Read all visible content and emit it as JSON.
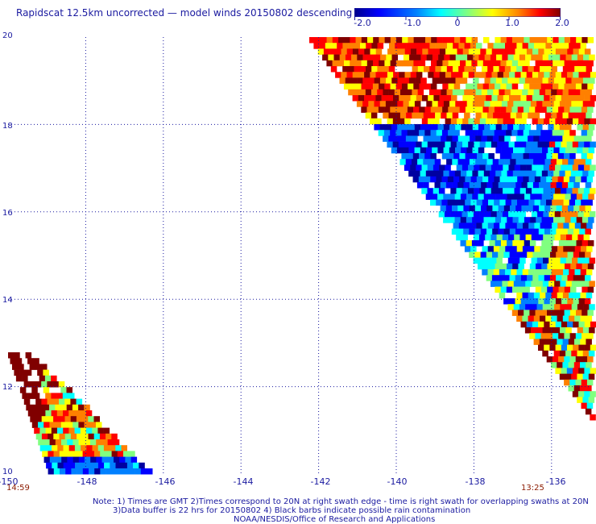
{
  "title": "Rapidscat 12.5km uncorrected — model winds 20150802 descending",
  "colorbar": {
    "labels": [
      "-2.0",
      "-1.0",
      "0",
      "1.0",
      "2.0"
    ],
    "range": [
      -2.0,
      2.0
    ],
    "colors": [
      "#0000a0",
      "#0000ff",
      "#0080ff",
      "#00ffff",
      "#80ff80",
      "#ffff00",
      "#ff8000",
      "#ff0000",
      "#800000"
    ]
  },
  "axes": {
    "lat_ticks": [
      "20",
      "18",
      "16",
      "14",
      "12",
      "10"
    ],
    "lon_ticks": [
      "-150",
      "-148",
      "-146",
      "-144",
      "-142",
      "-140",
      "-138",
      "-136"
    ],
    "lat_range": [
      10,
      20
    ],
    "lon_range": [
      -150,
      -135
    ],
    "grid": true
  },
  "times": {
    "left": "14:59",
    "right": "13:25"
  },
  "notes": {
    "line1": "Note: 1) Times are GMT 2)Times correspond to 20N at right swath edge - time is right swath for overlapping swaths at 20N",
    "line2": "3)Data buffer is 22 hrs for 20150802 4) Black barbs indicate possible rain contamination",
    "line3": "NOAA/NESDIS/Office of Research and Applications"
  }
}
